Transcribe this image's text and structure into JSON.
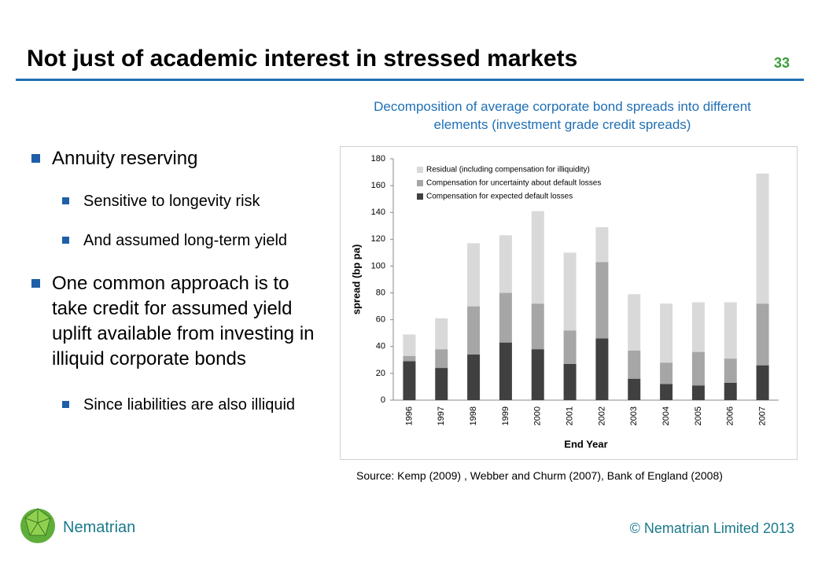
{
  "header": {
    "title": "Not just of academic interest in stressed markets",
    "page_number": "33"
  },
  "bullets": [
    {
      "level": 1,
      "text": "Annuity reserving"
    },
    {
      "level": 2,
      "text": "Sensitive to longevity risk"
    },
    {
      "level": 2,
      "text": "And assumed long-term yield"
    },
    {
      "level": 1,
      "text": "One common approach is to take credit for assumed yield uplift available from investing in illiquid corporate bonds"
    },
    {
      "level": 2,
      "text": "Since liabilities are also illiquid"
    }
  ],
  "chart_data": {
    "type": "stacked_bar",
    "title": "Decomposition of average corporate bond spreads into different elements (investment grade credit spreads)",
    "x_label": "End Year",
    "y_label": "spread (bp pa)",
    "categories": [
      "1996",
      "1997",
      "1998",
      "1999",
      "2000",
      "2001",
      "2002",
      "2003",
      "2004",
      "2005",
      "2006",
      "2007"
    ],
    "series": [
      {
        "name": "Compensation for expected default losses",
        "color": "#404040",
        "values": [
          29,
          24,
          34,
          43,
          38,
          27,
          46,
          16,
          12,
          11,
          13,
          26
        ]
      },
      {
        "name": "Compensation for uncertainty about default losses",
        "color": "#a6a6a6",
        "values": [
          4,
          14,
          36,
          37,
          34,
          25,
          57,
          21,
          16,
          25,
          18,
          46
        ]
      },
      {
        "name": "Residual (including compensation for illiquidity)",
        "color": "#d9d9d9",
        "values": [
          16,
          23,
          47,
          43,
          69,
          58,
          26,
          42,
          44,
          37,
          42,
          97
        ]
      }
    ],
    "ylim": [
      0,
      180
    ],
    "yticks": [
      0,
      20,
      40,
      60,
      80,
      100,
      120,
      140,
      160,
      180
    ],
    "grid": false,
    "legend": "top-left"
  },
  "source": "Source: Kemp (2009) , Webber and Churm (2007), Bank of England (2008)",
  "footer": {
    "brand": "Nematrian",
    "copyright": "© Nematrian Limited 2013"
  }
}
